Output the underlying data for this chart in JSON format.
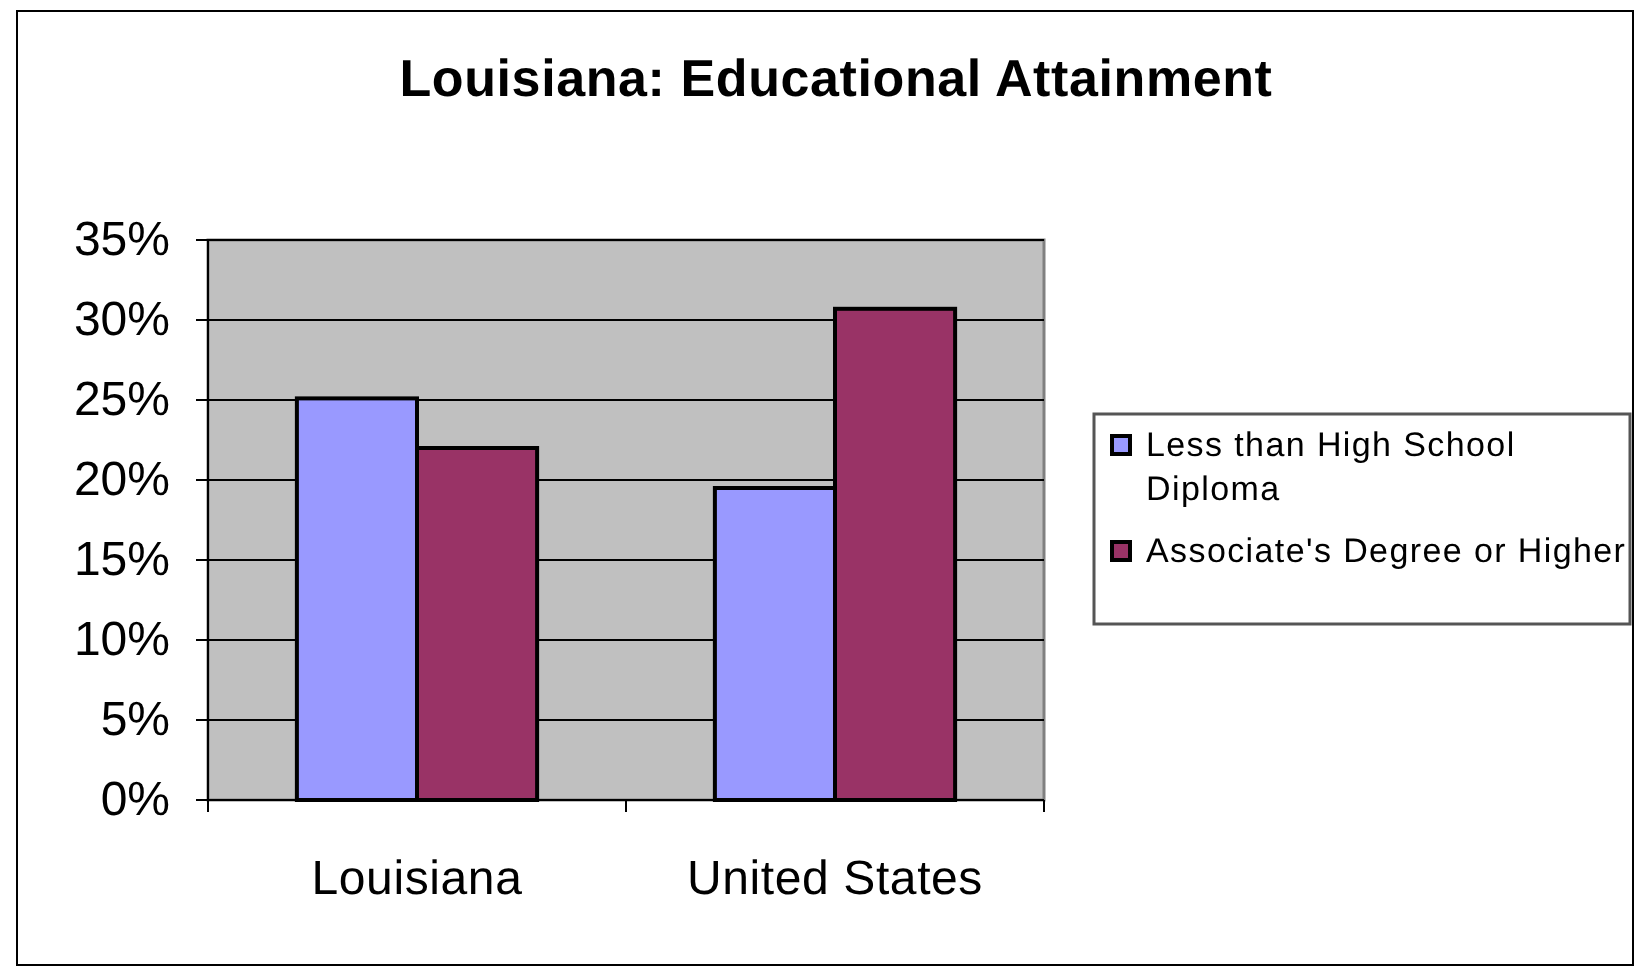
{
  "chart_data": {
    "type": "bar",
    "title": "Louisiana: Educational Attainment",
    "categories": [
      "Louisiana",
      "United States"
    ],
    "series": [
      {
        "name": "Less than High School Diploma",
        "color": "#9999ff",
        "values": [
          25.1,
          19.5
        ]
      },
      {
        "name": "Associate's Degree or Higher",
        "color": "#993366",
        "values": [
          22.0,
          30.7
        ]
      }
    ],
    "ylim": [
      0,
      35
    ],
    "yticks": [
      {
        "value": 0,
        "label": "0%"
      },
      {
        "value": 5,
        "label": "5%"
      },
      {
        "value": 10,
        "label": "10%"
      },
      {
        "value": 15,
        "label": "15%"
      },
      {
        "value": 20,
        "label": "20%"
      },
      {
        "value": 25,
        "label": "25%"
      },
      {
        "value": 30,
        "label": "30%"
      },
      {
        "value": 35,
        "label": "35%"
      }
    ],
    "grid": "y",
    "legend": "right"
  }
}
